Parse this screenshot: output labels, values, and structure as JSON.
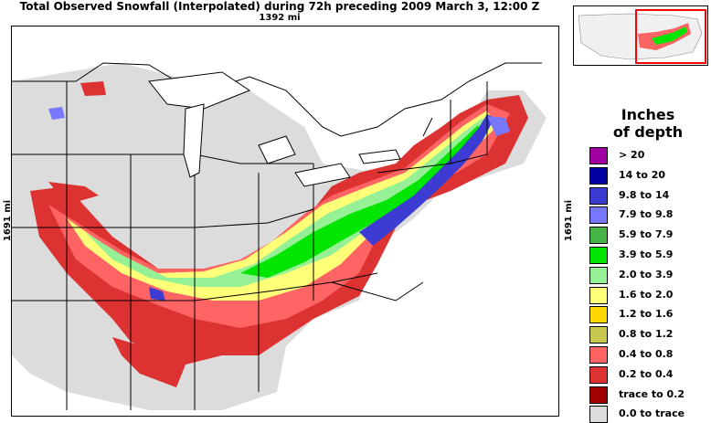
{
  "header": {
    "title": "Total Observed Snowfall (Interpolated) during 72h preceding 2009 March 3, 12:00 Z",
    "width_scale": "1392 mi",
    "height_scale": "1691 mi"
  },
  "legend": {
    "title_line1": "Inches",
    "title_line2": "of depth",
    "items": [
      {
        "label": ">   20",
        "color": "#a000a0"
      },
      {
        "label": "14 to   20",
        "color": "#0000a0"
      },
      {
        "label": "9.8 to   14",
        "color": "#3c3cd2"
      },
      {
        "label": "7.9 to   9.8",
        "color": "#7878ff"
      },
      {
        "label": "5.9 to   7.9",
        "color": "#46b446"
      },
      {
        "label": "3.9 to   5.9",
        "color": "#00e600"
      },
      {
        "label": "2.0 to   3.9",
        "color": "#96f096"
      },
      {
        "label": "1.6 to   2.0",
        "color": "#ffff78"
      },
      {
        "label": "1.2 to   1.6",
        "color": "#ffd700"
      },
      {
        "label": "0.8 to   1.2",
        "color": "#c8c850"
      },
      {
        "label": "0.4 to   0.8",
        "color": "#ff6464"
      },
      {
        "label": "0.2 to   0.4",
        "color": "#dc3232"
      },
      {
        "label": "trace to   0.2",
        "color": "#a00000"
      },
      {
        "label": "0.0 to trace",
        "color": "#dcdcdc"
      }
    ]
  },
  "map": {
    "region": "Eastern United States",
    "inset_region": "Continental United States"
  }
}
